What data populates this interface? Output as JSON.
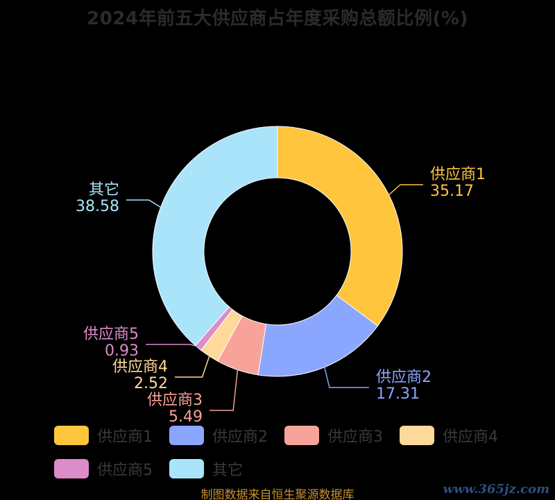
{
  "title": "2024年前五大供应商占年度采购总额比例(%)",
  "source": "制图数据来自恒生聚源数据库",
  "watermark": "www.365jz.com",
  "chart_data": {
    "type": "pie",
    "title": "2024年前五大供应商占年度采购总额比例(%)",
    "donut": true,
    "legend": "bottom",
    "series": [
      {
        "name": "供应商1",
        "value": 35.17,
        "color": "#FFC53D"
      },
      {
        "name": "供应商2",
        "value": 17.31,
        "color": "#8BA6FF"
      },
      {
        "name": "供应商3",
        "value": 5.49,
        "color": "#F8A399"
      },
      {
        "name": "供应商4",
        "value": 2.52,
        "color": "#FFD99A"
      },
      {
        "name": "供应商5",
        "value": 0.93,
        "color": "#DC8CC8"
      },
      {
        "name": "其它",
        "value": 38.58,
        "color": "#A9E4FA"
      }
    ]
  }
}
